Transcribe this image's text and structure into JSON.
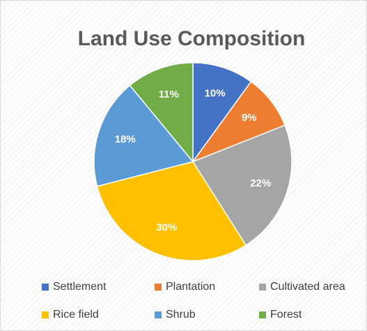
{
  "chart_data": {
    "type": "pie",
    "title": "Land Use Composition",
    "categories": [
      "Settlement",
      "Plantation",
      "Cultivated area",
      "Rice field",
      "Shrub",
      "Forest"
    ],
    "values": [
      10,
      9,
      22,
      30,
      18,
      11
    ],
    "value_labels": [
      "10%",
      "9%",
      "22%",
      "30%",
      "18%",
      "11%"
    ],
    "colors": [
      "#4472c4",
      "#ed7d31",
      "#a5a5a5",
      "#ffc000",
      "#5b9bd5",
      "#70ad47"
    ],
    "legend": "bottom"
  }
}
